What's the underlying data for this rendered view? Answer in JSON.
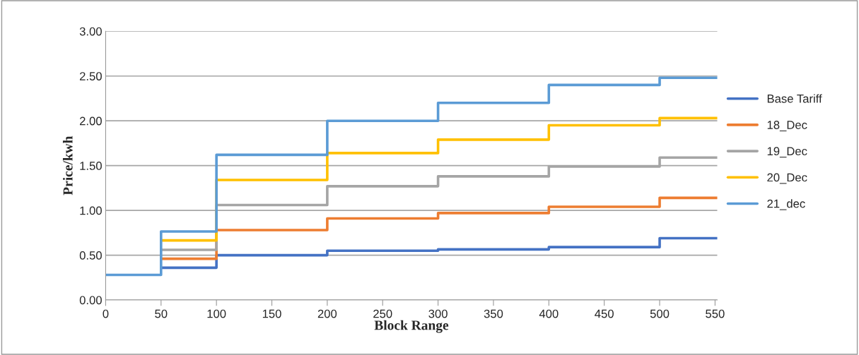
{
  "chart_data": {
    "type": "step",
    "xlabel": "Block Range",
    "ylabel": "Price/kwh",
    "x": [
      0,
      50,
      100,
      200,
      300,
      400,
      500,
      552
    ],
    "series": [
      {
        "name": "Base Tariff",
        "color": "#4472c4",
        "values": [
          null,
          0.36,
          0.5,
          0.55,
          0.565,
          0.59,
          0.69,
          0.69
        ]
      },
      {
        "name": "18_Dec",
        "color": "#ed7d31",
        "values": [
          null,
          0.46,
          0.78,
          0.91,
          0.97,
          1.04,
          1.14,
          1.14
        ]
      },
      {
        "name": "19_Dec",
        "color": "#a5a5a5",
        "values": [
          null,
          0.56,
          1.06,
          1.27,
          1.38,
          1.49,
          1.59,
          1.59
        ]
      },
      {
        "name": "20_Dec",
        "color": "#ffc000",
        "values": [
          null,
          0.665,
          1.34,
          1.64,
          1.79,
          1.95,
          2.03,
          2.03
        ]
      },
      {
        "name": "21_dec",
        "color": "#5b9bd5",
        "values": [
          0.28,
          0.765,
          1.62,
          2.0,
          2.2,
          2.4,
          2.48,
          2.48
        ]
      }
    ],
    "xlim": [
      0,
      552
    ],
    "xticks": [
      0,
      50,
      100,
      150,
      200,
      250,
      300,
      350,
      400,
      450,
      500,
      550
    ],
    "ylim": [
      0,
      3
    ],
    "yticks": [
      {
        "value": 0,
        "label": "0.00"
      },
      {
        "value": 0.5,
        "label": "0.50"
      },
      {
        "value": 1,
        "label": "1.00"
      },
      {
        "value": 1.5,
        "label": "1.50"
      },
      {
        "value": 2,
        "label": "2.00"
      },
      {
        "value": 2.5,
        "label": "2.50"
      },
      {
        "value": 3,
        "label": "3.00"
      }
    ],
    "grid": "y",
    "legend": "right",
    "line_style": "solid"
  }
}
